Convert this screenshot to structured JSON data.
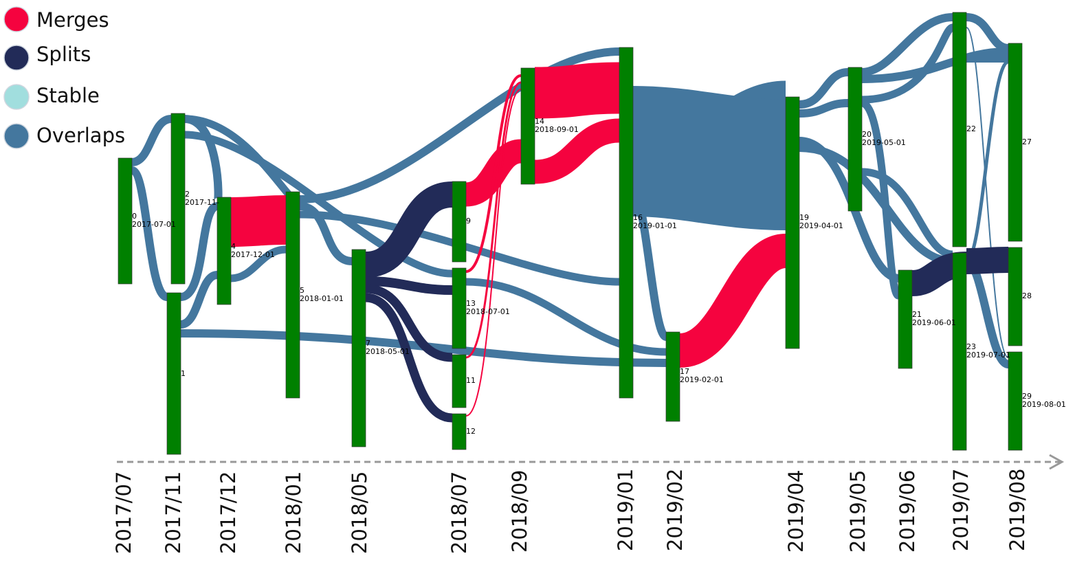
{
  "legend": [
    {
      "id": "merges",
      "label": "Merges",
      "color": "#f5033f"
    },
    {
      "id": "splits",
      "label": "Splits",
      "color": "#222b58"
    },
    {
      "id": "stable",
      "label": "Stable",
      "color": "#a1dede"
    },
    {
      "id": "overlaps",
      "label": "Overlaps",
      "color": "#44779e"
    }
  ],
  "node_color": "#008000",
  "axis_color": "#999999",
  "time_axis": [
    "2017/07",
    "2017/11",
    "2017/12",
    "2018/01",
    "2018/05",
    "2018/07",
    "2018/09",
    "2019/01",
    "2019/02",
    "2019/04",
    "2019/05",
    "2019/06",
    "2019/07",
    "2019/08"
  ],
  "nodes": [
    {
      "id": "0",
      "date": "2017-07-01"
    },
    {
      "id": "1",
      "date": ""
    },
    {
      "id": "2",
      "date": "2017-11-"
    },
    {
      "id": "4",
      "date": "2017-12-01"
    },
    {
      "id": "5",
      "date": "2018-01-01"
    },
    {
      "id": "7",
      "date": "2018-05-01"
    },
    {
      "id": "9",
      "date": ""
    },
    {
      "id": "13",
      "date": "2018-07-01"
    },
    {
      "id": "11",
      "date": ""
    },
    {
      "id": "12",
      "date": ""
    },
    {
      "id": "14",
      "date": "2018-09-01"
    },
    {
      "id": "16",
      "date": "2019-01-01"
    },
    {
      "id": "17",
      "date": "2019-02-01"
    },
    {
      "id": "19",
      "date": "2019-04-01"
    },
    {
      "id": "20",
      "date": "2019-05-01"
    },
    {
      "id": "21",
      "date": "2019-06-01"
    },
    {
      "id": "22",
      "date": ""
    },
    {
      "id": "23",
      "date": "2019-07-01"
    },
    {
      "id": "27",
      "date": ""
    },
    {
      "id": "28",
      "date": ""
    },
    {
      "id": "29",
      "date": "2019-08-01"
    }
  ]
}
